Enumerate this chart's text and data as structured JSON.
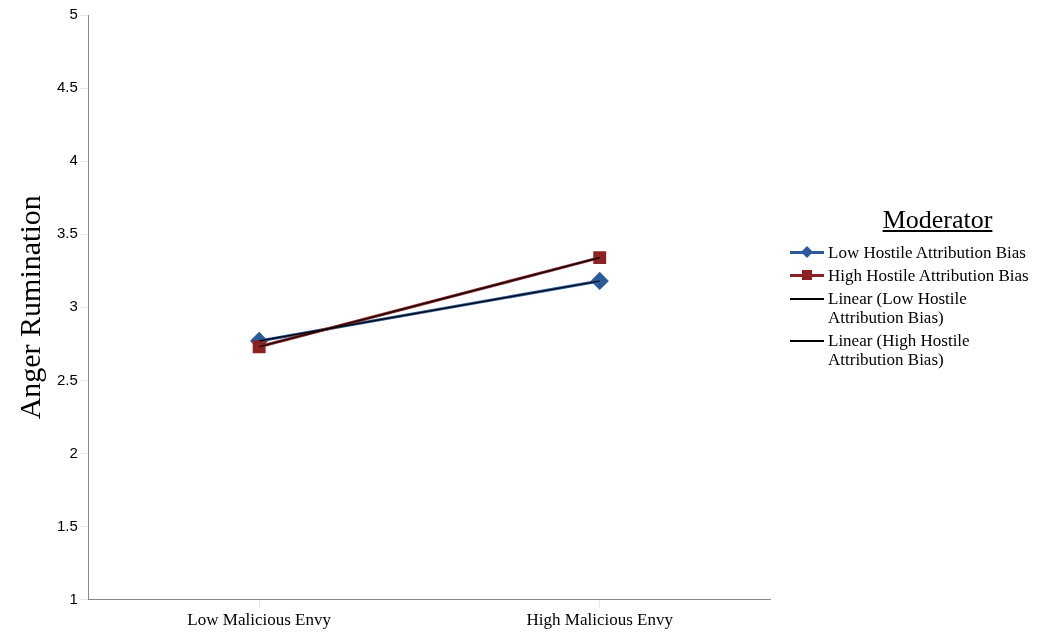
{
  "chart_data": {
    "type": "line",
    "ylabel": "Anger Rumination",
    "legend_title": "Moderator",
    "legend": "right",
    "grid": false,
    "categories": [
      "Low Malicious Envy",
      "High Malicious Envy"
    ],
    "ylim": [
      1,
      5
    ],
    "yticks": [
      1,
      1.5,
      2,
      2.5,
      3,
      3.5,
      4,
      4.5,
      5
    ],
    "series": [
      {
        "name": "Low Hostile Attribution Bias",
        "color": "#2a5a9a",
        "values": [
          2.77,
          3.18
        ],
        "marker": "diamond"
      },
      {
        "name": "High Hostile Attribution Bias",
        "color": "#8b2323",
        "values": [
          2.73,
          3.34
        ],
        "marker": "square"
      },
      {
        "name": "Linear (Low Hostile Attribution Bias)",
        "color": "#000000",
        "values": [
          2.77,
          3.18
        ],
        "marker": "none"
      },
      {
        "name": "Linear (High Hostile Attribution Bias)",
        "color": "#000000",
        "values": [
          2.73,
          3.34
        ],
        "marker": "none"
      }
    ]
  }
}
